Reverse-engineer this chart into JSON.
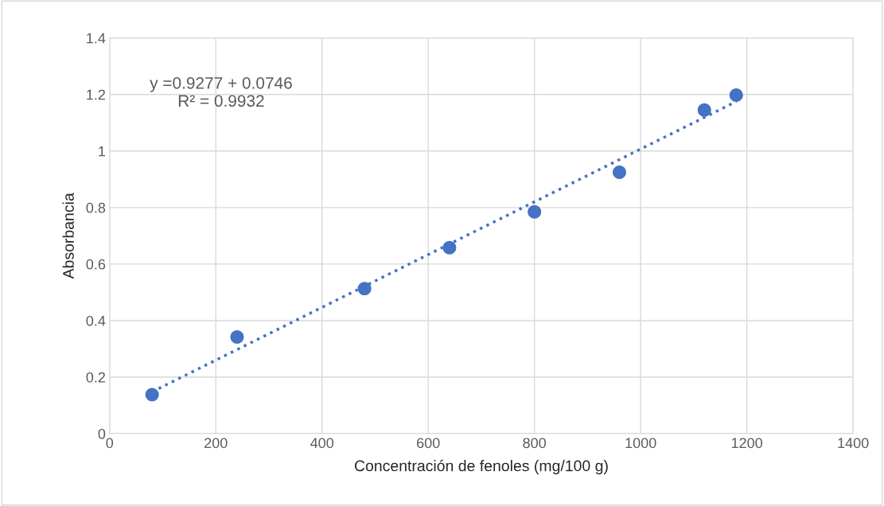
{
  "chart_data": {
    "type": "scatter",
    "xlabel": "Concentración de fenoles (mg/100 g)",
    "ylabel": "Absorbancia",
    "xlim": [
      0,
      1400
    ],
    "xticks": [
      0,
      200,
      400,
      600,
      800,
      1000,
      1200,
      1400
    ],
    "ylim": [
      0,
      1.4
    ],
    "yticks": [
      0,
      0.2,
      0.4,
      0.6,
      0.8,
      1,
      1.2,
      1.4
    ],
    "grid": true,
    "legend": false,
    "marker": "circle",
    "annotations": [
      "y =0.9277 + 0.0746\nR² = 0.9932"
    ],
    "series": [
      {
        "color": "#4472c4",
        "x": [
          80,
          240,
          480,
          640,
          800,
          960,
          1120,
          1180
        ],
        "values": [
          0.138,
          0.342,
          0.513,
          0.658,
          0.785,
          0.925,
          1.145,
          1.198
        ]
      },
      {
        "type": "line",
        "color": "#4472c4",
        "line_style": "dotted",
        "marker": "none",
        "x": [
          80,
          1180
        ],
        "values": [
          0.148,
          1.175
        ]
      }
    ]
  }
}
